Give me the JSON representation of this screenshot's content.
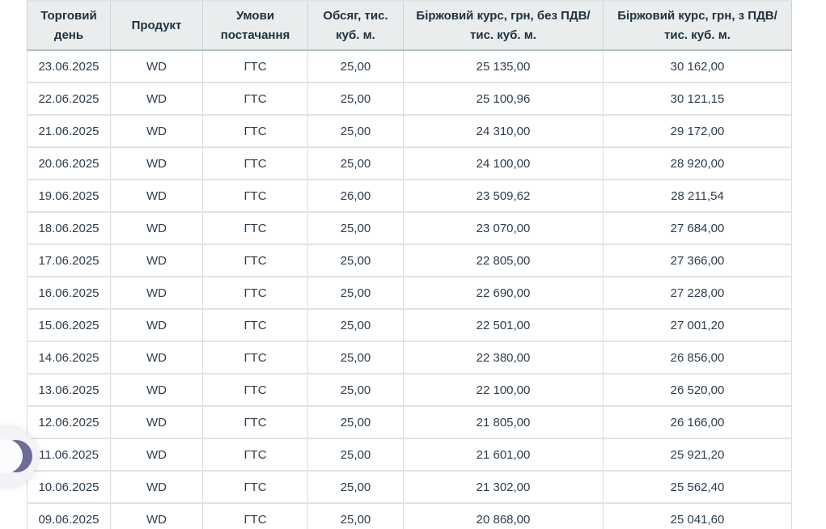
{
  "table": {
    "columns": [
      "Торговий день",
      "Продукт",
      "Умови постачання",
      "Обсяг, тис. куб. м.",
      "Біржовий курс, грн, без ПДВ/тис. куб. м.",
      "Біржовий курс, грн, з ПДВ/тис. куб. м."
    ],
    "rows": [
      [
        "23.06.2025",
        "WD",
        "ГТС",
        "25,00",
        "25 135,00",
        "30 162,00"
      ],
      [
        "22.06.2025",
        "WD",
        "ГТС",
        "25,00",
        "25 100,96",
        "30 121,15"
      ],
      [
        "21.06.2025",
        "WD",
        "ГТС",
        "25,00",
        "24 310,00",
        "29 172,00"
      ],
      [
        "20.06.2025",
        "WD",
        "ГТС",
        "25,00",
        "24 100,00",
        "28 920,00"
      ],
      [
        "19.06.2025",
        "WD",
        "ГТС",
        "26,00",
        "23 509,62",
        "28 211,54"
      ],
      [
        "18.06.2025",
        "WD",
        "ГТС",
        "25,00",
        "23 070,00",
        "27 684,00"
      ],
      [
        "17.06.2025",
        "WD",
        "ГТС",
        "25,00",
        "22 805,00",
        "27 366,00"
      ],
      [
        "16.06.2025",
        "WD",
        "ГТС",
        "25,00",
        "22 690,00",
        "27 228,00"
      ],
      [
        "15.06.2025",
        "WD",
        "ГТС",
        "25,00",
        "22 501,00",
        "27 001,20"
      ],
      [
        "14.06.2025",
        "WD",
        "ГТС",
        "25,00",
        "22 380,00",
        "26 856,00"
      ],
      [
        "13.06.2025",
        "WD",
        "ГТС",
        "25,00",
        "22 100,00",
        "26 520,00"
      ],
      [
        "12.06.2025",
        "WD",
        "ГТС",
        "25,00",
        "21 805,00",
        "26 166,00"
      ],
      [
        "11.06.2025",
        "WD",
        "ГТС",
        "25,00",
        "21 601,00",
        "25 921,20"
      ],
      [
        "10.06.2025",
        "WD",
        "ГТС",
        "25,00",
        "21 302,00",
        "25 562,40"
      ],
      [
        "09.06.2025",
        "WD",
        "ГТС",
        "25,00",
        "20 868,00",
        "25 041,60"
      ]
    ]
  },
  "colors": {
    "header_background": "#e9edee",
    "header_text": "#203140",
    "cell_text": "#2e3c4b",
    "grid_line": "#d9dcdf",
    "widget_accent": "#6e6a99"
  }
}
